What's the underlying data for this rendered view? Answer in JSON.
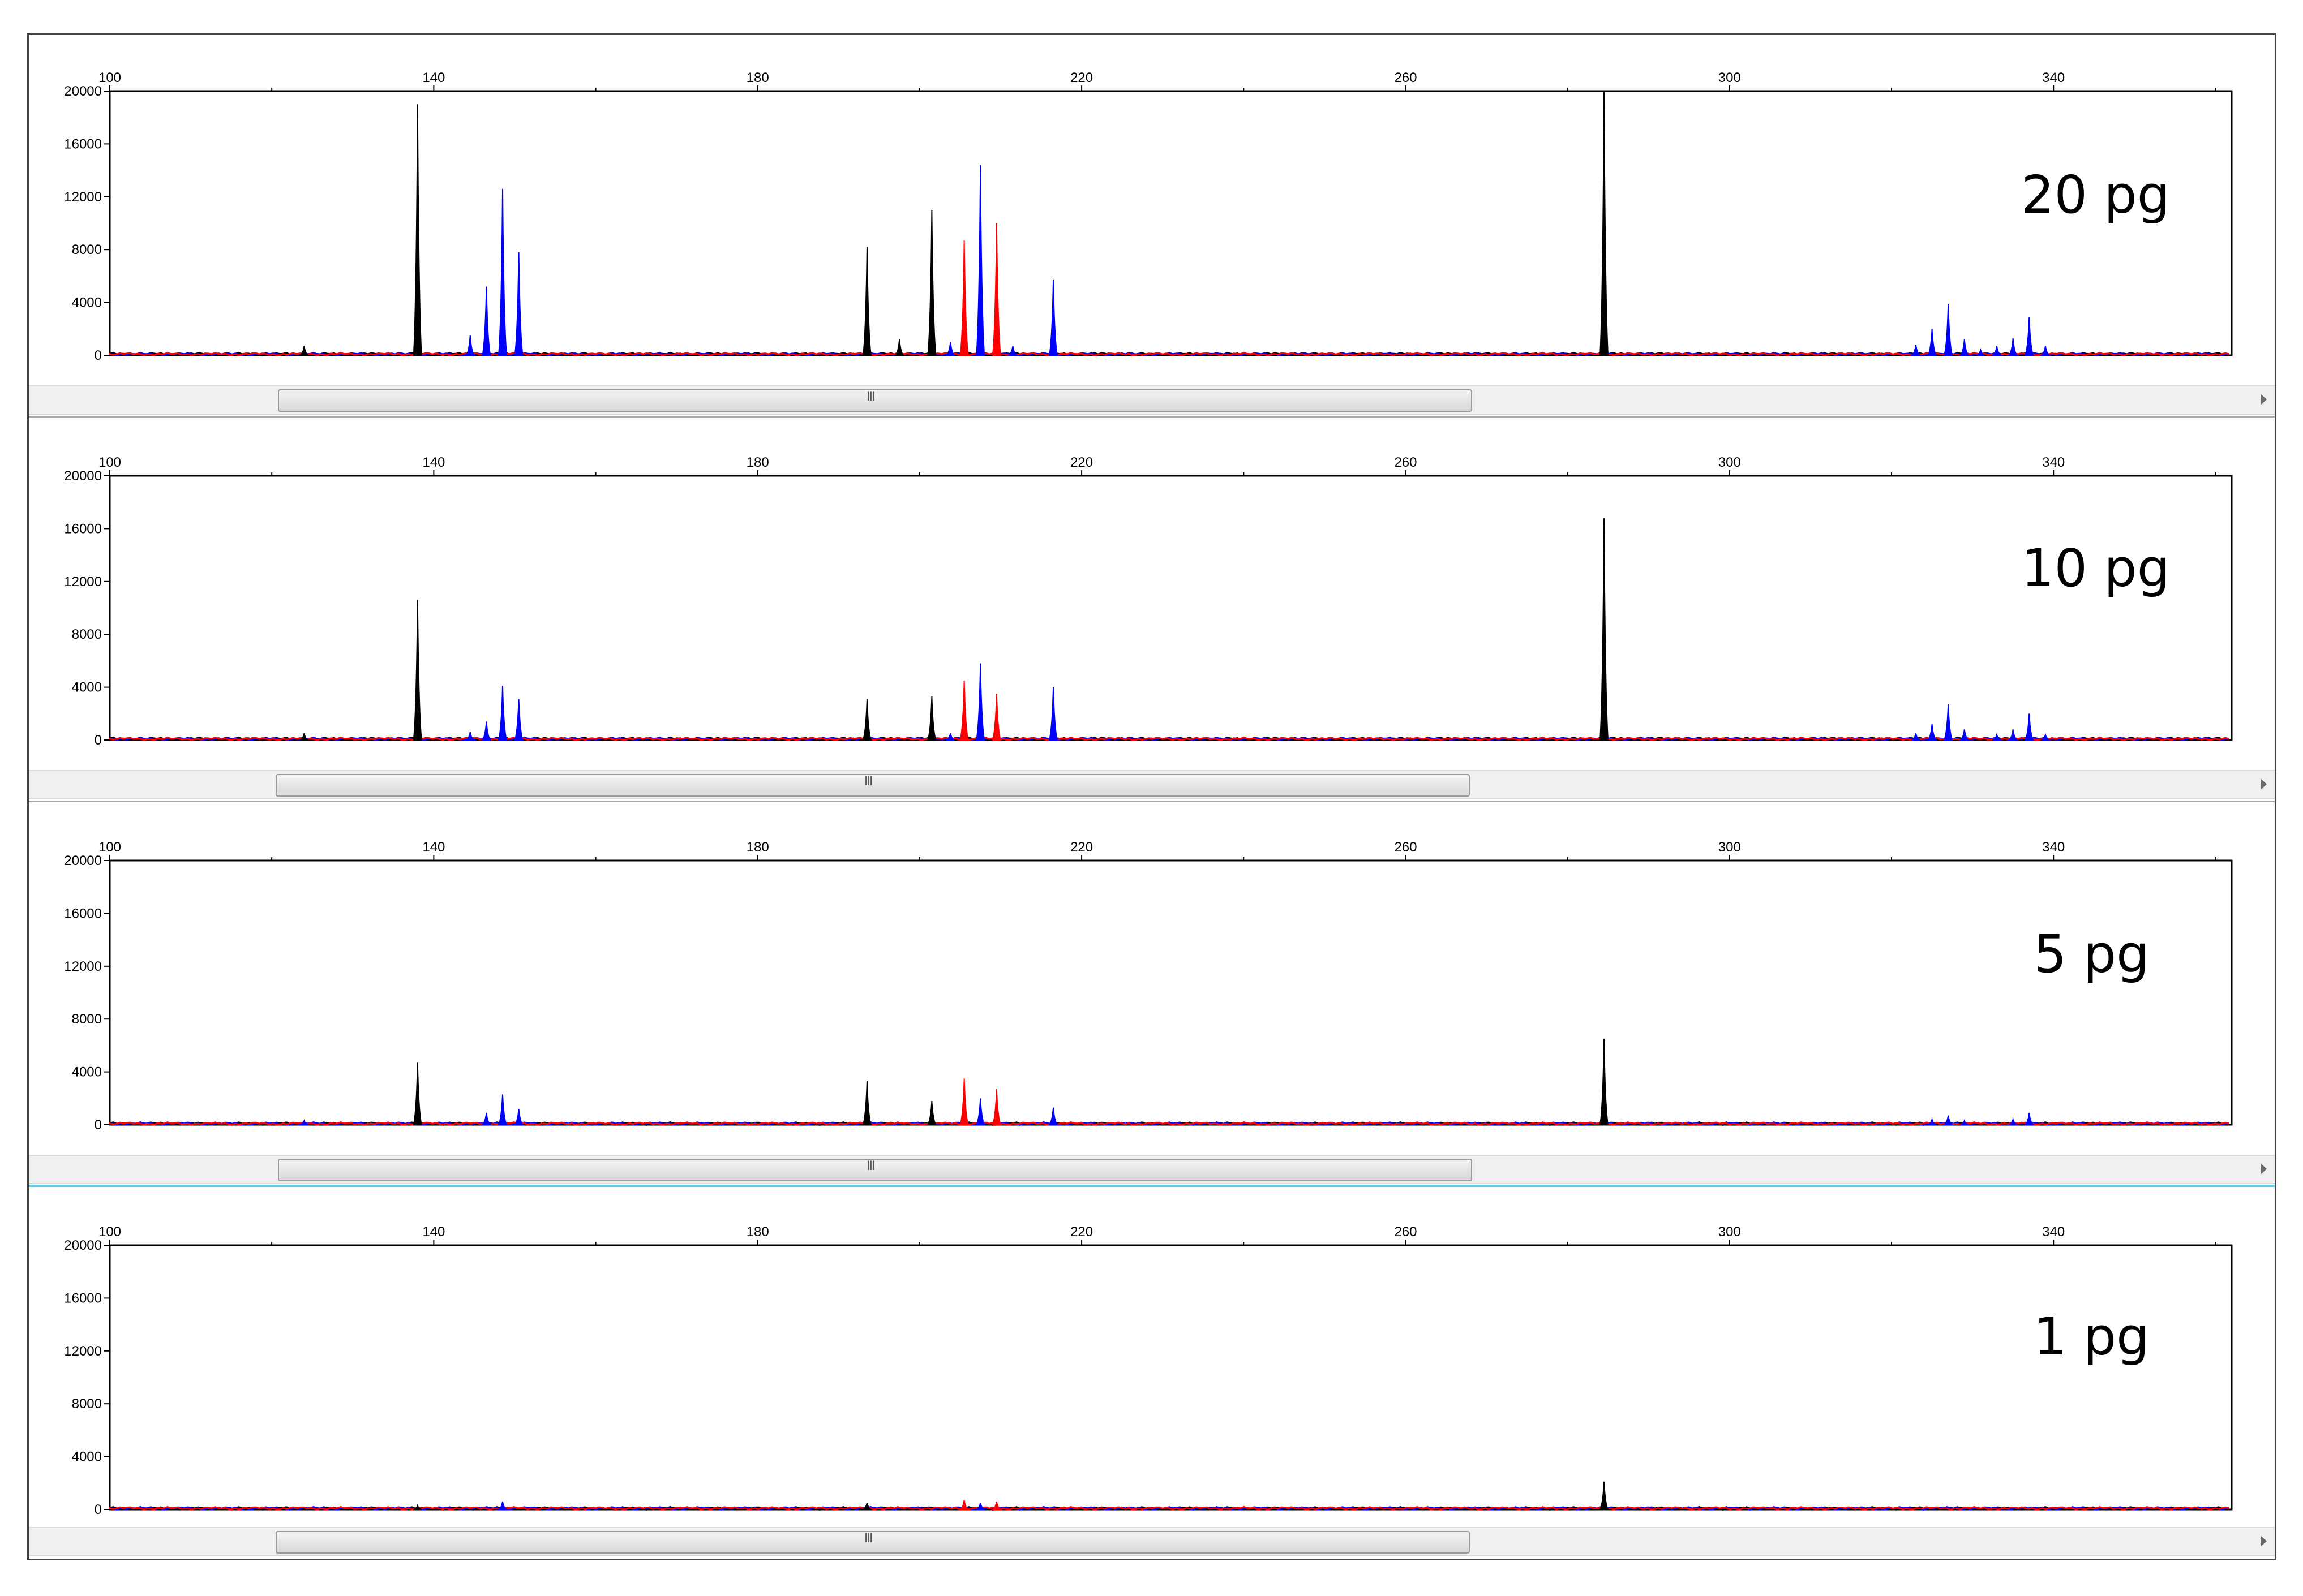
{
  "chart_data": [
    {
      "type": "line",
      "title": "20 pg",
      "xlim": [
        100,
        362
      ],
      "ylim": [
        0,
        20000
      ],
      "x_ticks": [
        100,
        140,
        180,
        220,
        260,
        300,
        340
      ],
      "y_ticks": [
        0,
        4000,
        8000,
        12000,
        16000,
        20000
      ],
      "series_colors": {
        "black": "#000000",
        "blue": "#0000ff",
        "red": "#ff0000"
      },
      "peaks": [
        {
          "x": 138,
          "y": 19000,
          "c": "black"
        },
        {
          "x": 124,
          "y": 700,
          "c": "black"
        },
        {
          "x": 144.5,
          "y": 1500,
          "c": "blue"
        },
        {
          "x": 146.5,
          "y": 5200,
          "c": "blue"
        },
        {
          "x": 148.5,
          "y": 12600,
          "c": "blue"
        },
        {
          "x": 150.5,
          "y": 7800,
          "c": "blue"
        },
        {
          "x": 193.5,
          "y": 8200,
          "c": "black"
        },
        {
          "x": 197.5,
          "y": 1200,
          "c": "black"
        },
        {
          "x": 201.5,
          "y": 11000,
          "c": "black"
        },
        {
          "x": 205.5,
          "y": 8700,
          "c": "red"
        },
        {
          "x": 207.5,
          "y": 14400,
          "c": "blue"
        },
        {
          "x": 209.5,
          "y": 10000,
          "c": "red"
        },
        {
          "x": 203.8,
          "y": 1000,
          "c": "blue"
        },
        {
          "x": 211.5,
          "y": 700,
          "c": "blue"
        },
        {
          "x": 216.5,
          "y": 5700,
          "c": "blue"
        },
        {
          "x": 284.5,
          "y": 20000,
          "c": "black"
        },
        {
          "x": 323,
          "y": 800,
          "c": "blue"
        },
        {
          "x": 325,
          "y": 2000,
          "c": "blue"
        },
        {
          "x": 327,
          "y": 3900,
          "c": "blue"
        },
        {
          "x": 329,
          "y": 1200,
          "c": "blue"
        },
        {
          "x": 331,
          "y": 400,
          "c": "blue"
        },
        {
          "x": 333,
          "y": 700,
          "c": "blue"
        },
        {
          "x": 335,
          "y": 1300,
          "c": "blue"
        },
        {
          "x": 337,
          "y": 2900,
          "c": "blue"
        },
        {
          "x": 339,
          "y": 700,
          "c": "blue"
        }
      ]
    },
    {
      "type": "line",
      "title": "10 pg",
      "xlim": [
        100,
        362
      ],
      "ylim": [
        0,
        20000
      ],
      "x_ticks": [
        100,
        140,
        180,
        220,
        260,
        300,
        340
      ],
      "y_ticks": [
        0,
        4000,
        8000,
        12000,
        16000,
        20000
      ],
      "series_colors": {
        "black": "#000000",
        "blue": "#0000ff",
        "red": "#ff0000"
      },
      "peaks": [
        {
          "x": 138,
          "y": 10600,
          "c": "black"
        },
        {
          "x": 124,
          "y": 500,
          "c": "black"
        },
        {
          "x": 144.5,
          "y": 600,
          "c": "blue"
        },
        {
          "x": 146.5,
          "y": 1400,
          "c": "blue"
        },
        {
          "x": 148.5,
          "y": 4100,
          "c": "blue"
        },
        {
          "x": 150.5,
          "y": 3100,
          "c": "blue"
        },
        {
          "x": 193.5,
          "y": 3100,
          "c": "black"
        },
        {
          "x": 201.5,
          "y": 3300,
          "c": "black"
        },
        {
          "x": 205.5,
          "y": 4500,
          "c": "red"
        },
        {
          "x": 207.5,
          "y": 5800,
          "c": "blue"
        },
        {
          "x": 209.5,
          "y": 3500,
          "c": "red"
        },
        {
          "x": 203.8,
          "y": 500,
          "c": "blue"
        },
        {
          "x": 216.5,
          "y": 4000,
          "c": "blue"
        },
        {
          "x": 284.5,
          "y": 16800,
          "c": "black"
        },
        {
          "x": 323,
          "y": 500,
          "c": "blue"
        },
        {
          "x": 325,
          "y": 1200,
          "c": "blue"
        },
        {
          "x": 327,
          "y": 2700,
          "c": "blue"
        },
        {
          "x": 329,
          "y": 800,
          "c": "blue"
        },
        {
          "x": 333,
          "y": 400,
          "c": "blue"
        },
        {
          "x": 335,
          "y": 800,
          "c": "blue"
        },
        {
          "x": 337,
          "y": 2000,
          "c": "blue"
        },
        {
          "x": 339,
          "y": 400,
          "c": "blue"
        }
      ]
    },
    {
      "type": "line",
      "title": "5 pg",
      "xlim": [
        100,
        362
      ],
      "ylim": [
        0,
        20000
      ],
      "x_ticks": [
        100,
        140,
        180,
        220,
        260,
        300,
        340
      ],
      "y_ticks": [
        0,
        4000,
        8000,
        12000,
        16000,
        20000
      ],
      "series_colors": {
        "black": "#000000",
        "blue": "#0000ff",
        "red": "#ff0000"
      },
      "peaks": [
        {
          "x": 138,
          "y": 4700,
          "c": "black"
        },
        {
          "x": 124,
          "y": 300,
          "c": "blue"
        },
        {
          "x": 146.5,
          "y": 900,
          "c": "blue"
        },
        {
          "x": 148.5,
          "y": 2300,
          "c": "blue"
        },
        {
          "x": 150.5,
          "y": 1200,
          "c": "blue"
        },
        {
          "x": 193.5,
          "y": 3300,
          "c": "black"
        },
        {
          "x": 201.5,
          "y": 1800,
          "c": "black"
        },
        {
          "x": 205.5,
          "y": 3500,
          "c": "red"
        },
        {
          "x": 207.5,
          "y": 2000,
          "c": "blue"
        },
        {
          "x": 209.5,
          "y": 2700,
          "c": "red"
        },
        {
          "x": 216.5,
          "y": 1300,
          "c": "blue"
        },
        {
          "x": 284.5,
          "y": 6500,
          "c": "black"
        },
        {
          "x": 325,
          "y": 400,
          "c": "blue"
        },
        {
          "x": 327,
          "y": 700,
          "c": "blue"
        },
        {
          "x": 329,
          "y": 300,
          "c": "blue"
        },
        {
          "x": 335,
          "y": 400,
          "c": "blue"
        },
        {
          "x": 337,
          "y": 900,
          "c": "blue"
        }
      ]
    },
    {
      "type": "line",
      "title": "1 pg",
      "xlim": [
        100,
        362
      ],
      "ylim": [
        0,
        20000
      ],
      "x_ticks": [
        100,
        140,
        180,
        220,
        260,
        300,
        340
      ],
      "y_ticks": [
        0,
        4000,
        8000,
        12000,
        16000,
        20000
      ],
      "series_colors": {
        "black": "#000000",
        "blue": "#0000ff",
        "red": "#ff0000"
      },
      "peaks": [
        {
          "x": 138,
          "y": 300,
          "c": "black"
        },
        {
          "x": 148.5,
          "y": 600,
          "c": "blue"
        },
        {
          "x": 193.5,
          "y": 500,
          "c": "black"
        },
        {
          "x": 205.5,
          "y": 700,
          "c": "red"
        },
        {
          "x": 207.5,
          "y": 500,
          "c": "blue"
        },
        {
          "x": 209.5,
          "y": 600,
          "c": "red"
        },
        {
          "x": 284.5,
          "y": 2100,
          "c": "black"
        }
      ]
    }
  ],
  "scrollbar": {
    "grip_glyph": "III"
  }
}
